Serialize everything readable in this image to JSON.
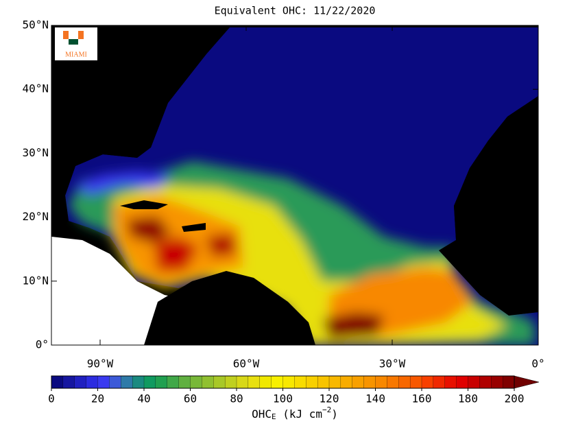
{
  "title": "Equivalent OHC: 11/22/2020",
  "logo": {
    "text": "MIAMI"
  },
  "map": {
    "xlim": [
      -100,
      0
    ],
    "ylim": [
      0,
      50
    ],
    "xticks": [
      {
        "value": -90,
        "label": "90°W"
      },
      {
        "value": -60,
        "label": "60°W"
      },
      {
        "value": -30,
        "label": "30°W"
      },
      {
        "value": 0,
        "label": "0°"
      }
    ],
    "yticks": [
      {
        "value": 0,
        "label": "0°"
      },
      {
        "value": 10,
        "label": "10°N"
      },
      {
        "value": 20,
        "label": "20°N"
      },
      {
        "value": 30,
        "label": "30°N"
      },
      {
        "value": 40,
        "label": "40°N"
      },
      {
        "value": 50,
        "label": "50°N"
      }
    ]
  },
  "colorbar": {
    "lim": [
      0,
      200
    ],
    "ticks": [
      0,
      20,
      40,
      60,
      80,
      100,
      120,
      140,
      160,
      180,
      200
    ],
    "colors": [
      "#0a0a80",
      "#1616a0",
      "#2020c0",
      "#2c2ce0",
      "#3a3af0",
      "#3c5ad8",
      "#2e7aa8",
      "#1a8a80",
      "#109a60",
      "#20a050",
      "#40a848",
      "#60b040",
      "#78b838",
      "#90c030",
      "#a8c828",
      "#c0d020",
      "#d8d818",
      "#e8e010",
      "#f0e800",
      "#f8f000",
      "#f8e800",
      "#f8dc00",
      "#f8d000",
      "#f8c400",
      "#f8b800",
      "#f8ac00",
      "#f8a000",
      "#f89400",
      "#f88800",
      "#f87800",
      "#f86800",
      "#f85800",
      "#f84000",
      "#f02800",
      "#e81000",
      "#e00000",
      "#c80000",
      "#b00000",
      "#980000",
      "#800000"
    ],
    "extend_color": "#700000",
    "label": {
      "main": "OHC",
      "sub": "E",
      "unit": " (kJ cm",
      "exp": "−2",
      "close": ")"
    }
  }
}
